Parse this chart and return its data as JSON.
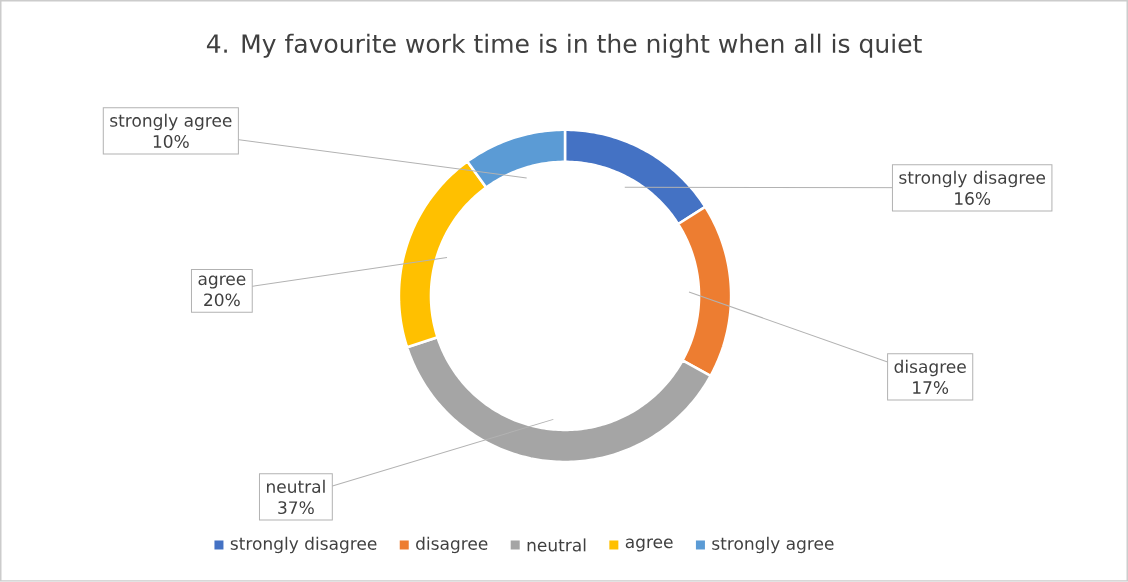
{
  "chart_data": {
    "type": "donut",
    "title": "4.   My favourite work time is in the night when all is quiet",
    "categories": [
      "strongly disagree",
      "disagree",
      "neutral",
      "agree",
      "strongly agree"
    ],
    "values": [
      16,
      17,
      37,
      20,
      10
    ],
    "value_labels": [
      "16%",
      "17%",
      "37%",
      "20%",
      "10%"
    ],
    "colors": [
      "#4472c4",
      "#ed7d31",
      "#a5a5a5",
      "#ffc000",
      "#5b9bd5"
    ],
    "legend": "bottom"
  }
}
